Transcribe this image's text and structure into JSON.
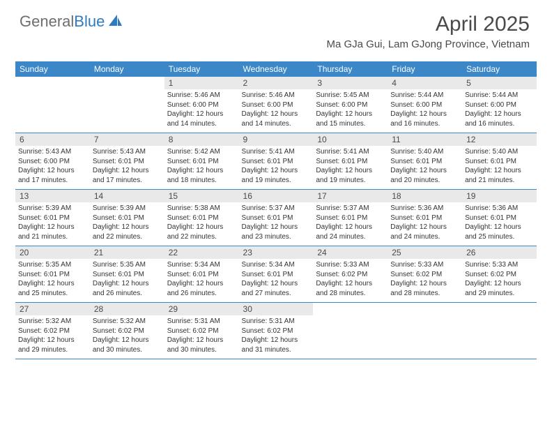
{
  "logo": {
    "text_general": "General",
    "text_blue": "Blue"
  },
  "title": "April 2025",
  "location": "Ma GJa Gui, Lam GJong Province, Vietnam",
  "colors": {
    "header_bg": "#3b87c8",
    "header_fg": "#ffffff",
    "daynum_bg": "#e9e9e9",
    "text": "#333333",
    "rule": "#3b87c8"
  },
  "day_names": [
    "Sunday",
    "Monday",
    "Tuesday",
    "Wednesday",
    "Thursday",
    "Friday",
    "Saturday"
  ],
  "weeks": [
    [
      null,
      null,
      {
        "n": "1",
        "sr": "5:46 AM",
        "ss": "6:00 PM",
        "dl": "12 hours and 14 minutes."
      },
      {
        "n": "2",
        "sr": "5:46 AM",
        "ss": "6:00 PM",
        "dl": "12 hours and 14 minutes."
      },
      {
        "n": "3",
        "sr": "5:45 AM",
        "ss": "6:00 PM",
        "dl": "12 hours and 15 minutes."
      },
      {
        "n": "4",
        "sr": "5:44 AM",
        "ss": "6:00 PM",
        "dl": "12 hours and 16 minutes."
      },
      {
        "n": "5",
        "sr": "5:44 AM",
        "ss": "6:00 PM",
        "dl": "12 hours and 16 minutes."
      }
    ],
    [
      {
        "n": "6",
        "sr": "5:43 AM",
        "ss": "6:00 PM",
        "dl": "12 hours and 17 minutes."
      },
      {
        "n": "7",
        "sr": "5:43 AM",
        "ss": "6:01 PM",
        "dl": "12 hours and 17 minutes."
      },
      {
        "n": "8",
        "sr": "5:42 AM",
        "ss": "6:01 PM",
        "dl": "12 hours and 18 minutes."
      },
      {
        "n": "9",
        "sr": "5:41 AM",
        "ss": "6:01 PM",
        "dl": "12 hours and 19 minutes."
      },
      {
        "n": "10",
        "sr": "5:41 AM",
        "ss": "6:01 PM",
        "dl": "12 hours and 19 minutes."
      },
      {
        "n": "11",
        "sr": "5:40 AM",
        "ss": "6:01 PM",
        "dl": "12 hours and 20 minutes."
      },
      {
        "n": "12",
        "sr": "5:40 AM",
        "ss": "6:01 PM",
        "dl": "12 hours and 21 minutes."
      }
    ],
    [
      {
        "n": "13",
        "sr": "5:39 AM",
        "ss": "6:01 PM",
        "dl": "12 hours and 21 minutes."
      },
      {
        "n": "14",
        "sr": "5:39 AM",
        "ss": "6:01 PM",
        "dl": "12 hours and 22 minutes."
      },
      {
        "n": "15",
        "sr": "5:38 AM",
        "ss": "6:01 PM",
        "dl": "12 hours and 22 minutes."
      },
      {
        "n": "16",
        "sr": "5:37 AM",
        "ss": "6:01 PM",
        "dl": "12 hours and 23 minutes."
      },
      {
        "n": "17",
        "sr": "5:37 AM",
        "ss": "6:01 PM",
        "dl": "12 hours and 24 minutes."
      },
      {
        "n": "18",
        "sr": "5:36 AM",
        "ss": "6:01 PM",
        "dl": "12 hours and 24 minutes."
      },
      {
        "n": "19",
        "sr": "5:36 AM",
        "ss": "6:01 PM",
        "dl": "12 hours and 25 minutes."
      }
    ],
    [
      {
        "n": "20",
        "sr": "5:35 AM",
        "ss": "6:01 PM",
        "dl": "12 hours and 25 minutes."
      },
      {
        "n": "21",
        "sr": "5:35 AM",
        "ss": "6:01 PM",
        "dl": "12 hours and 26 minutes."
      },
      {
        "n": "22",
        "sr": "5:34 AM",
        "ss": "6:01 PM",
        "dl": "12 hours and 26 minutes."
      },
      {
        "n": "23",
        "sr": "5:34 AM",
        "ss": "6:01 PM",
        "dl": "12 hours and 27 minutes."
      },
      {
        "n": "24",
        "sr": "5:33 AM",
        "ss": "6:02 PM",
        "dl": "12 hours and 28 minutes."
      },
      {
        "n": "25",
        "sr": "5:33 AM",
        "ss": "6:02 PM",
        "dl": "12 hours and 28 minutes."
      },
      {
        "n": "26",
        "sr": "5:33 AM",
        "ss": "6:02 PM",
        "dl": "12 hours and 29 minutes."
      }
    ],
    [
      {
        "n": "27",
        "sr": "5:32 AM",
        "ss": "6:02 PM",
        "dl": "12 hours and 29 minutes."
      },
      {
        "n": "28",
        "sr": "5:32 AM",
        "ss": "6:02 PM",
        "dl": "12 hours and 30 minutes."
      },
      {
        "n": "29",
        "sr": "5:31 AM",
        "ss": "6:02 PM",
        "dl": "12 hours and 30 minutes."
      },
      {
        "n": "30",
        "sr": "5:31 AM",
        "ss": "6:02 PM",
        "dl": "12 hours and 31 minutes."
      },
      null,
      null,
      null
    ]
  ],
  "labels": {
    "sunrise": "Sunrise:",
    "sunset": "Sunset:",
    "daylight": "Daylight:"
  }
}
